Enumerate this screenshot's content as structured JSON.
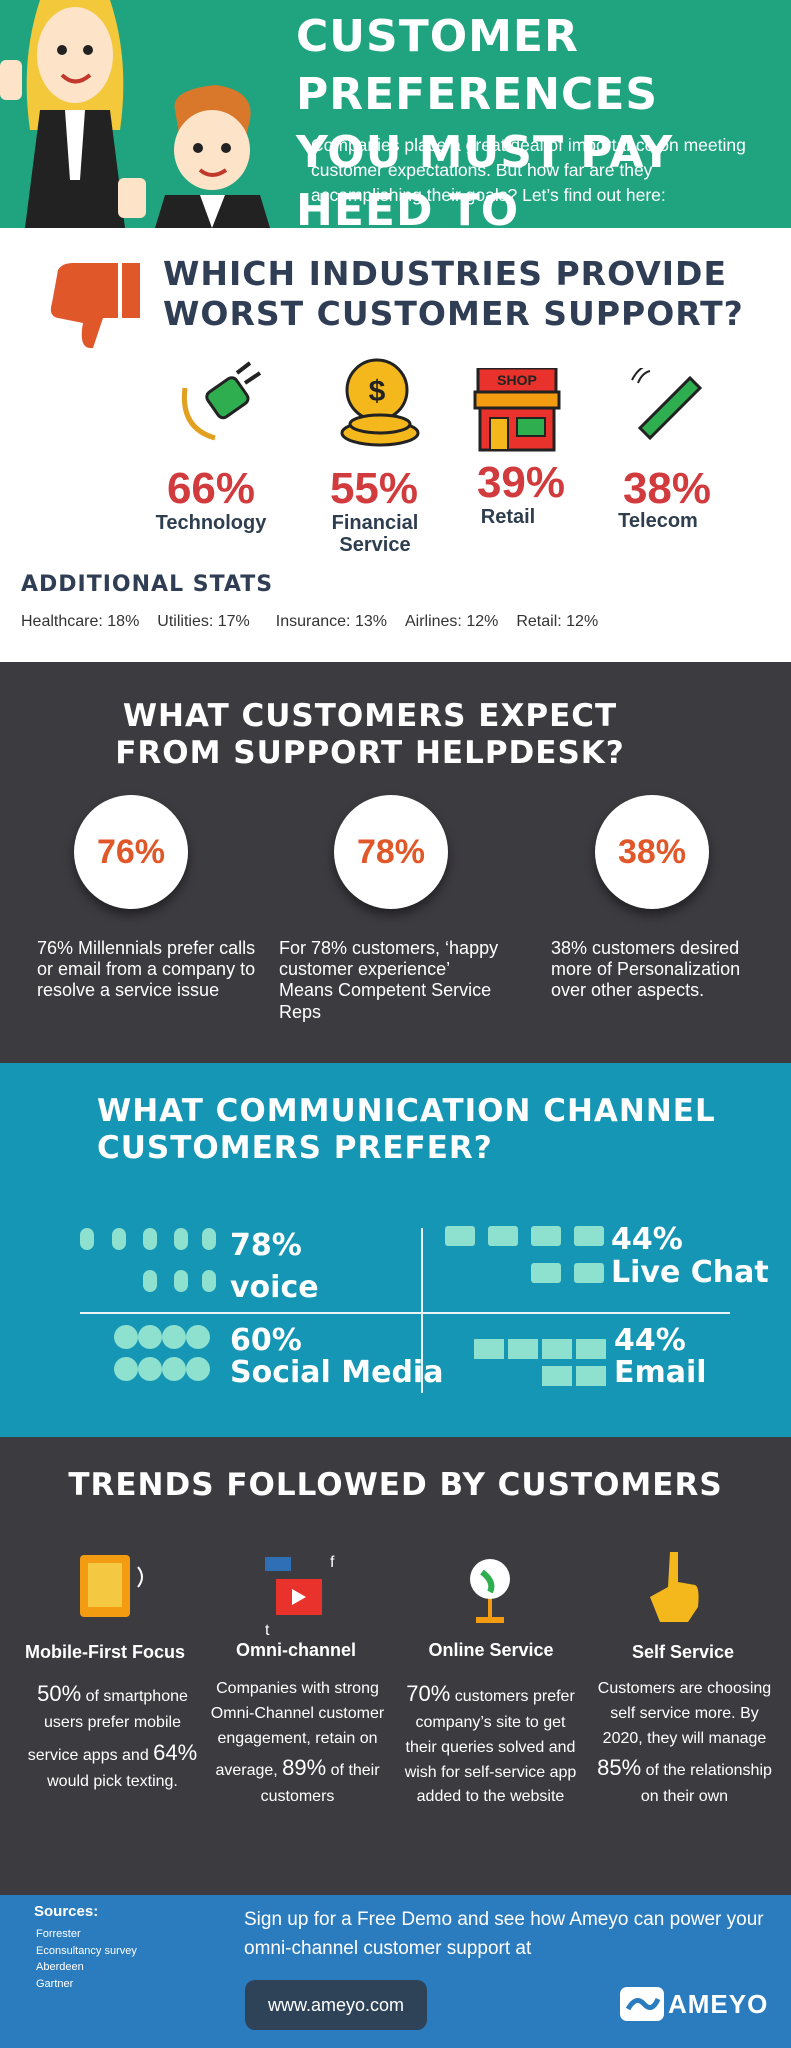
{
  "header": {
    "title_lines": [
      "CUSTOMER PREFERENCES",
      "YOU MUST PAY HEED TO"
    ],
    "intro": "Companies place a great deal of importance on meeting customer expectations. But how far are they accomplishing their goals?  Let’s find out here:"
  },
  "industries": {
    "heading": "WHICH INDUSTRIES PROVIDE WORST CUSTOMER SUPPORT?",
    "shop_sign": "SHOP",
    "items": [
      {
        "percent": "66%",
        "label": "Technology"
      },
      {
        "percent": "55%",
        "label": "Financial Service"
      },
      {
        "percent": "39%",
        "label": "Retail"
      },
      {
        "percent": "38%",
        "label": "Telecom"
      }
    ],
    "additional": {
      "heading": "ADDITIONAL STATS",
      "stats": [
        "Healthcare: 18%",
        "Utilities: 17%",
        "Insurance: 13%",
        "Airlines: 12%",
        "Retail: 12%"
      ]
    }
  },
  "expectations": {
    "heading": "WHAT CUSTOMERS EXPECT FROM SUPPORT HELPDESK?",
    "items": [
      {
        "percent": "76%",
        "text": "76% Millennials prefer calls or email from a company to resolve a service issue"
      },
      {
        "percent": "78%",
        "text": "For 78% customers, ‘happy customer experience’ Means Competent Service Reps"
      },
      {
        "percent": "38%",
        "text": "38% customers desired more of Personalization over other aspects."
      }
    ]
  },
  "channels": {
    "heading": "WHAT COMMUNICATION CHANNEL CUSTOMERS PREFER?",
    "items": [
      {
        "percent": "78%",
        "label": "voice"
      },
      {
        "percent": "44%",
        "label": "Live Chat"
      },
      {
        "percent": "60%",
        "label": "Social Media"
      },
      {
        "percent": "44%",
        "label": "Email"
      }
    ]
  },
  "trends": {
    "heading": "TRENDS FOLLOWED BY CUSTOMERS",
    "items": [
      {
        "title": "Mobile-First Focus",
        "body": [
          "50%",
          " of smartphone users prefer mobile service apps and ",
          "64%",
          " would pick texting."
        ]
      },
      {
        "title": "Omni-channel",
        "body": [
          "Companies with strong Omni-Channel customer engagement, retain on average, ",
          "89%",
          " of their customers"
        ]
      },
      {
        "title": "Online Service",
        "body": [
          "70%",
          " customers prefer company’s site to get their queries solved and wish for self-service app added to the website"
        ]
      },
      {
        "title": "Self Service",
        "body": [
          "Customers are choosing self service more. By 2020, they will manage ",
          "85%",
          " of the relationship on their own"
        ]
      }
    ]
  },
  "footer": {
    "sources_heading": "Sources:",
    "sources": [
      "Forrester",
      "Econsultancy survey",
      "Aberdeen",
      "Gartner"
    ],
    "cta": "Sign up for a Free Demo and see how Ameyo can power your omni-channel customer support at",
    "url": "www.ameyo.com",
    "logo": "AMEYO"
  }
}
